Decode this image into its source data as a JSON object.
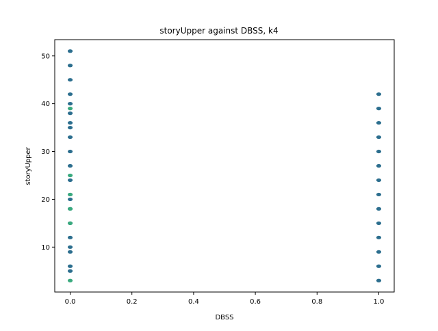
{
  "chart_data": {
    "type": "scatter",
    "title": "storyUpper against DBSS, k4",
    "xlabel": "DBSS",
    "ylabel": "storyUpper",
    "xlim": [
      -0.05,
      1.05
    ],
    "ylim": [
      0.6,
      53.4
    ],
    "x_ticks": [
      0.0,
      0.2,
      0.4,
      0.6,
      0.8,
      1.0
    ],
    "x_tick_labels": [
      "0.0",
      "0.2",
      "0.4",
      "0.6",
      "0.8",
      "1.0"
    ],
    "y_ticks": [
      10,
      20,
      30,
      40,
      50
    ],
    "y_tick_labels": [
      "10",
      "20",
      "30",
      "40",
      "50"
    ],
    "grid": false,
    "colors": {
      "dark": "#2c6e8e",
      "light": "#3aaa7e",
      "axis": "#000000"
    },
    "series": [
      {
        "color": "#2c6e8e",
        "points": [
          [
            0,
            51
          ],
          [
            0,
            48
          ],
          [
            0,
            45
          ],
          [
            0,
            42
          ],
          [
            0,
            40
          ],
          [
            0,
            38
          ],
          [
            0,
            36
          ],
          [
            0,
            35
          ],
          [
            0,
            33
          ],
          [
            0,
            30
          ],
          [
            0,
            27
          ],
          [
            0,
            24
          ],
          [
            0,
            21
          ],
          [
            0,
            20
          ],
          [
            0,
            18
          ],
          [
            0,
            15
          ],
          [
            0,
            12
          ],
          [
            0,
            10
          ],
          [
            0,
            9
          ],
          [
            0,
            6
          ],
          [
            0,
            5
          ],
          [
            1,
            42
          ],
          [
            1,
            39
          ],
          [
            1,
            36
          ],
          [
            1,
            33
          ],
          [
            1,
            30
          ],
          [
            1,
            27
          ],
          [
            1,
            24
          ],
          [
            1,
            21
          ],
          [
            1,
            18
          ],
          [
            1,
            15
          ],
          [
            1,
            12
          ],
          [
            1,
            9
          ],
          [
            1,
            6
          ],
          [
            1,
            3
          ]
        ]
      },
      {
        "color": "#3aaa7e",
        "points": [
          [
            0,
            39
          ],
          [
            0,
            25
          ],
          [
            0,
            21
          ],
          [
            0,
            18
          ],
          [
            0,
            15
          ],
          [
            0,
            3
          ]
        ]
      }
    ]
  }
}
